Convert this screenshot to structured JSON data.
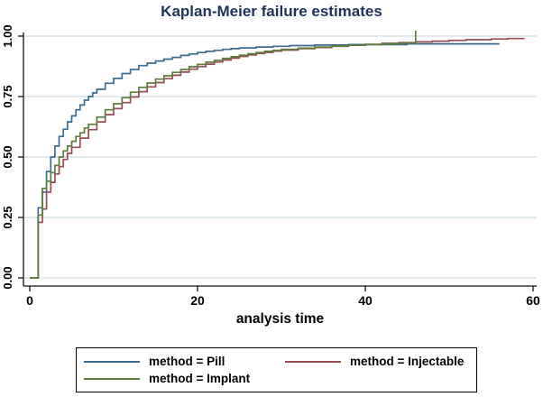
{
  "title": "Kaplan-Meier failure estimates",
  "colors": {
    "title_text": "#1d3358",
    "axis": "#111111",
    "grid": "#e0eaec",
    "pill": "#3d6e8f",
    "injectable": "#994d52",
    "implant": "#5e7c3b",
    "plot_background": "#ffffff"
  },
  "chart_data": {
    "type": "line",
    "subtype": "kaplan-meier-step",
    "title": "Kaplan-Meier failure estimates",
    "xlabel": "analysis time",
    "ylabel": "",
    "xlim": [
      0,
      60
    ],
    "ylim": [
      0,
      1
    ],
    "xticks": [
      0,
      20,
      40,
      60
    ],
    "yticks": [
      {
        "v": 0.0,
        "label": "0.00"
      },
      {
        "v": 0.25,
        "label": "0.25"
      },
      {
        "v": 0.5,
        "label": "0.50"
      },
      {
        "v": 0.75,
        "label": "0.75"
      },
      {
        "v": 1.0,
        "label": "1.00"
      }
    ],
    "grid": true,
    "legend_position": "bottom",
    "series": [
      {
        "name": "method = Pill",
        "color": "#3d6e8f",
        "end_t": 56,
        "censor_ticks": [],
        "points": [
          [
            1,
            0.29
          ],
          [
            1.5,
            0.355
          ],
          [
            2,
            0.44
          ],
          [
            2.5,
            0.5
          ],
          [
            3,
            0.545
          ],
          [
            3.5,
            0.585
          ],
          [
            4,
            0.615
          ],
          [
            4.5,
            0.645
          ],
          [
            5,
            0.67
          ],
          [
            5.5,
            0.695
          ],
          [
            6,
            0.715
          ],
          [
            6.5,
            0.735
          ],
          [
            7,
            0.75
          ],
          [
            7.5,
            0.765
          ],
          [
            8,
            0.78
          ],
          [
            9,
            0.805
          ],
          [
            10,
            0.825
          ],
          [
            11,
            0.845
          ],
          [
            12,
            0.862
          ],
          [
            13,
            0.878
          ],
          [
            14,
            0.888
          ],
          [
            15,
            0.897
          ],
          [
            16,
            0.905
          ],
          [
            17,
            0.912
          ],
          [
            18,
            0.92
          ],
          [
            19,
            0.926
          ],
          [
            20,
            0.932
          ],
          [
            21,
            0.937
          ],
          [
            22,
            0.941
          ],
          [
            23,
            0.945
          ],
          [
            24,
            0.948
          ],
          [
            25,
            0.951
          ],
          [
            27,
            0.955
          ],
          [
            29,
            0.958
          ],
          [
            31,
            0.961
          ],
          [
            34,
            0.963
          ],
          [
            38,
            0.965
          ],
          [
            45,
            0.968
          ]
        ]
      },
      {
        "name": "method = Injectable",
        "color": "#994d52",
        "end_t": 59,
        "censor_ticks": [],
        "points": [
          [
            1,
            0.23
          ],
          [
            1.5,
            0.285
          ],
          [
            2,
            0.355
          ],
          [
            2.5,
            0.395
          ],
          [
            3,
            0.43
          ],
          [
            3.5,
            0.46
          ],
          [
            4,
            0.49
          ],
          [
            4.5,
            0.515
          ],
          [
            5,
            0.54
          ],
          [
            6,
            0.578
          ],
          [
            7,
            0.613
          ],
          [
            8,
            0.645
          ],
          [
            9,
            0.675
          ],
          [
            10,
            0.7
          ],
          [
            11,
            0.725
          ],
          [
            12,
            0.748
          ],
          [
            13,
            0.77
          ],
          [
            14,
            0.79
          ],
          [
            15,
            0.808
          ],
          [
            16,
            0.824
          ],
          [
            17,
            0.838
          ],
          [
            18,
            0.851
          ],
          [
            19,
            0.863
          ],
          [
            20,
            0.874
          ],
          [
            21,
            0.884
          ],
          [
            22,
            0.893
          ],
          [
            23,
            0.901
          ],
          [
            24,
            0.909
          ],
          [
            25,
            0.916
          ],
          [
            26,
            0.922
          ],
          [
            27,
            0.928
          ],
          [
            28,
            0.933
          ],
          [
            29,
            0.938
          ],
          [
            30,
            0.942
          ],
          [
            32,
            0.948
          ],
          [
            34,
            0.953
          ],
          [
            36,
            0.958
          ],
          [
            38,
            0.962
          ],
          [
            40,
            0.966
          ],
          [
            42,
            0.97
          ],
          [
            44,
            0.973
          ],
          [
            46,
            0.976
          ],
          [
            48,
            0.979
          ],
          [
            50,
            0.982
          ],
          [
            52,
            0.985
          ],
          [
            55,
            0.988
          ],
          [
            57,
            0.99
          ]
        ]
      },
      {
        "name": "method = Implant",
        "color": "#5e7c3b",
        "end_t": 46,
        "censor_ticks": [
          [
            46,
            0.974
          ]
        ],
        "points": [
          [
            1,
            0.26
          ],
          [
            1.5,
            0.37
          ],
          [
            2,
            0.4
          ],
          [
            2.5,
            0.435
          ],
          [
            3,
            0.465
          ],
          [
            3.5,
            0.5
          ],
          [
            4,
            0.525
          ],
          [
            4.5,
            0.545
          ],
          [
            5,
            0.565
          ],
          [
            5.5,
            0.585
          ],
          [
            6,
            0.6
          ],
          [
            6.5,
            0.62
          ],
          [
            7,
            0.635
          ],
          [
            8,
            0.665
          ],
          [
            9,
            0.695
          ],
          [
            10,
            0.72
          ],
          [
            11,
            0.745
          ],
          [
            12,
            0.768
          ],
          [
            13,
            0.788
          ],
          [
            14,
            0.806
          ],
          [
            15,
            0.822
          ],
          [
            16,
            0.836
          ],
          [
            17,
            0.85
          ],
          [
            18,
            0.862
          ],
          [
            19,
            0.873
          ],
          [
            20,
            0.883
          ],
          [
            21,
            0.892
          ],
          [
            22,
            0.9
          ],
          [
            23,
            0.908
          ],
          [
            24,
            0.915
          ],
          [
            25,
            0.921
          ],
          [
            26,
            0.927
          ],
          [
            27,
            0.932
          ],
          [
            28,
            0.937
          ],
          [
            29,
            0.941
          ],
          [
            30,
            0.945
          ],
          [
            32,
            0.95
          ],
          [
            34,
            0.955
          ],
          [
            36,
            0.959
          ],
          [
            38,
            0.962
          ],
          [
            40,
            0.965
          ],
          [
            42,
            0.968
          ],
          [
            44,
            0.971
          ],
          [
            46,
            0.974
          ]
        ]
      }
    ]
  },
  "legend": {
    "items": [
      {
        "label": "method = Pill",
        "color": "#3d6e8f"
      },
      {
        "label": "method = Injectable",
        "color": "#994d52"
      },
      {
        "label": "method = Implant",
        "color": "#5e7c3b"
      }
    ]
  }
}
